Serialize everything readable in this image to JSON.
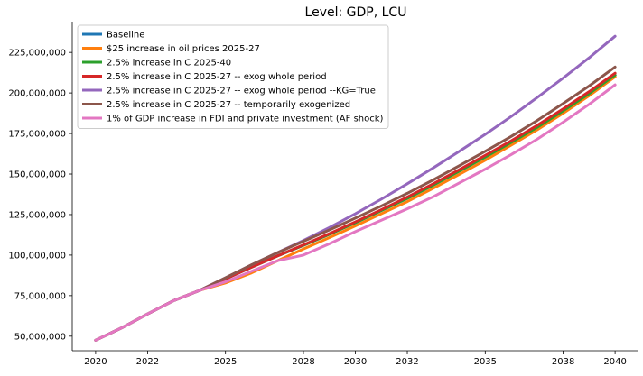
{
  "chart_data": {
    "type": "line",
    "title": "Level: GDP, LCU",
    "xlabel": "",
    "ylabel": "",
    "xlim": [
      2019.1,
      2040.9
    ],
    "ylim": [
      41000000,
      244000000
    ],
    "grid": false,
    "legend_position": "top-left",
    "x_ticks": [
      2020,
      2022,
      2025,
      2028,
      2030,
      2032,
      2035,
      2038,
      2040
    ],
    "x_tick_labels": [
      "2020",
      "2022",
      "2025",
      "2028",
      "2030",
      "2032",
      "2035",
      "2038",
      "2040"
    ],
    "y_ticks": [
      50000000,
      75000000,
      100000000,
      125000000,
      150000000,
      175000000,
      200000000,
      225000000
    ],
    "y_tick_labels": [
      "50,000,000",
      "75,000,000",
      "100,000,000",
      "125,000,000",
      "150,000,000",
      "175,000,000",
      "200,000,000",
      "225,000,000"
    ],
    "x": [
      2020,
      2021,
      2022,
      2023,
      2024,
      2025,
      2026,
      2027,
      2028,
      2029,
      2030,
      2031,
      2032,
      2033,
      2034,
      2035,
      2036,
      2037,
      2038,
      2039,
      2040
    ],
    "series": [
      {
        "name": "Baseline",
        "color": "#1f77b4",
        "values": [
          47500000,
          55100000,
          63700000,
          71900000,
          78200000,
          85300000,
          92500000,
          99500000,
          106000000,
          112800000,
          120000000,
          127500000,
          135000000,
          143200000,
          151800000,
          160500000,
          169500000,
          178800000,
          189000000,
          199600000,
          211000000
        ]
      },
      {
        "name": "$25 increase in oil prices 2025-27",
        "color": "#ff7f0e",
        "values": [
          47500000,
          55100000,
          63700000,
          71900000,
          78200000,
          82800000,
          89000000,
          96500000,
          103800000,
          110800000,
          118000000,
          125500000,
          133000000,
          141200000,
          149800000,
          158500000,
          167800000,
          177300000,
          187500000,
          198300000,
          210000000
        ]
      },
      {
        "name": "2.5% increase in C 2025-40",
        "color": "#2ca02c",
        "values": [
          47500000,
          55100000,
          63700000,
          71900000,
          78200000,
          85300000,
          92500000,
          99500000,
          106000000,
          112800000,
          120000000,
          127500000,
          135000000,
          143200000,
          151800000,
          160500000,
          169500000,
          178800000,
          189000000,
          199600000,
          211000000
        ]
      },
      {
        "name": "2.5% increase in C 2025-27 -- exog whole period",
        "color": "#d62728",
        "values": [
          47500000,
          55100000,
          63700000,
          71900000,
          78200000,
          85300000,
          92500000,
          99500000,
          106300000,
          113200000,
          120500000,
          128000000,
          135800000,
          144000000,
          152700000,
          161500000,
          170500000,
          180000000,
          190200000,
          200800000,
          212200000
        ]
      },
      {
        "name": "2.5% increase in C 2025-27 -- exog whole period --KG=True",
        "color": "#9467bd",
        "values": [
          47500000,
          55100000,
          63700000,
          71900000,
          78200000,
          86000000,
          94000000,
          101500000,
          109000000,
          117000000,
          125500000,
          134500000,
          144000000,
          153800000,
          164000000,
          174500000,
          185500000,
          197200000,
          209200000,
          221700000,
          235000000
        ]
      },
      {
        "name": "2.5% increase in C 2025-27 -- temporarily exogenized",
        "color": "#8c564b",
        "values": [
          47500000,
          55100000,
          63700000,
          71900000,
          78200000,
          86000000,
          94000000,
          101500000,
          108500000,
          115500000,
          122800000,
          130300000,
          138100000,
          146400000,
          155100000,
          164000000,
          173200000,
          183000000,
          193500000,
          204300000,
          216000000
        ]
      },
      {
        "name": "1% of GDP increase in FDI and private investment (AF shock)",
        "color": "#e377c2",
        "values": [
          47500000,
          55100000,
          63700000,
          71900000,
          78200000,
          83500000,
          90000000,
          96500000,
          100000000,
          107000000,
          114500000,
          121500000,
          128500000,
          136000000,
          144500000,
          153000000,
          162000000,
          171500000,
          182000000,
          193000000,
          205000000
        ]
      }
    ]
  }
}
